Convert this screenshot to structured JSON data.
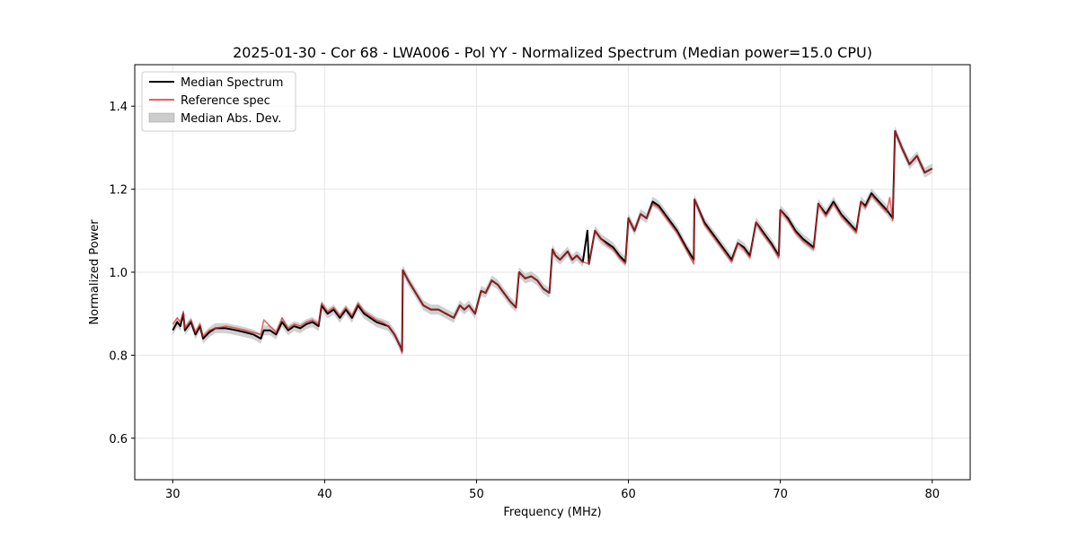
{
  "chart_data": {
    "type": "line",
    "title": "2025-01-30 - Cor 68 - LWA006 - Pol YY - Normalized Spectrum (Median power=15.0 CPU)",
    "xlabel": "Frequency (MHz)",
    "ylabel": "Normalized Power",
    "xlim": [
      27.5,
      82.5
    ],
    "ylim": [
      0.5,
      1.5
    ],
    "xticks": [
      30,
      40,
      50,
      60,
      70,
      80
    ],
    "yticks": [
      0.6,
      0.8,
      1.0,
      1.2,
      1.4
    ],
    "xtick_labels": [
      "30",
      "40",
      "50",
      "60",
      "70",
      "80"
    ],
    "ytick_labels": [
      "0.6",
      "0.8",
      "1.0",
      "1.2",
      "1.4"
    ],
    "grid": true,
    "legend_position": "top-left",
    "legend": [
      "Median Spectrum",
      "Reference spec",
      "Median Abs. Dev."
    ],
    "colors": {
      "median": "#000000",
      "reference": "#e0282b",
      "mad": "#b0b0b0"
    },
    "series": [
      {
        "name": "Median Spectrum",
        "x": [
          30.0,
          30.3,
          30.5,
          30.7,
          30.8,
          31.2,
          31.5,
          31.8,
          32.0,
          32.4,
          32.8,
          33.5,
          34.2,
          34.8,
          35.3,
          35.8,
          36.0,
          36.4,
          36.8,
          37.2,
          37.6,
          38.0,
          38.4,
          38.8,
          39.2,
          39.6,
          39.8,
          40.2,
          40.6,
          41.0,
          41.4,
          41.8,
          42.2,
          42.6,
          43.0,
          43.4,
          43.8,
          44.2,
          44.6,
          45.0,
          45.1,
          45.15,
          45.5,
          46.0,
          46.5,
          47.0,
          47.5,
          48.0,
          48.5,
          48.9,
          49.2,
          49.5,
          49.9,
          50.3,
          50.6,
          51.0,
          51.4,
          51.8,
          52.2,
          52.6,
          52.8,
          53.2,
          53.6,
          54.0,
          54.4,
          54.8,
          55.0,
          55.2,
          55.5,
          56.0,
          56.3,
          56.6,
          57.0,
          57.3,
          57.4,
          57.8,
          58.2,
          58.6,
          59.0,
          59.4,
          59.8,
          60.0,
          60.4,
          60.8,
          61.2,
          61.6,
          62.0,
          62.6,
          63.2,
          63.8,
          64.3,
          64.35,
          65.0,
          65.6,
          66.2,
          66.8,
          67.2,
          67.6,
          68.0,
          68.4,
          68.8,
          69.4,
          69.9,
          70.0,
          70.5,
          71.0,
          71.5,
          72.2,
          72.5,
          73.0,
          73.5,
          74.0,
          74.5,
          75.0,
          75.3,
          75.6,
          76.0,
          76.5,
          77.0,
          77.4,
          77.55,
          78.0,
          78.5,
          79.0,
          79.5,
          80.0
        ],
        "values": [
          0.86,
          0.88,
          0.87,
          0.9,
          0.86,
          0.88,
          0.85,
          0.87,
          0.84,
          0.855,
          0.865,
          0.865,
          0.86,
          0.855,
          0.85,
          0.84,
          0.86,
          0.86,
          0.85,
          0.88,
          0.86,
          0.87,
          0.865,
          0.875,
          0.88,
          0.87,
          0.92,
          0.9,
          0.91,
          0.89,
          0.91,
          0.89,
          0.92,
          0.9,
          0.89,
          0.88,
          0.875,
          0.87,
          0.85,
          0.82,
          0.81,
          1.005,
          0.98,
          0.95,
          0.92,
          0.91,
          0.91,
          0.9,
          0.89,
          0.92,
          0.91,
          0.92,
          0.9,
          0.955,
          0.95,
          0.98,
          0.97,
          0.95,
          0.93,
          0.915,
          1.0,
          0.985,
          0.99,
          0.98,
          0.96,
          0.95,
          1.055,
          1.04,
          1.03,
          1.05,
          1.03,
          1.04,
          1.025,
          1.1,
          1.02,
          1.1,
          1.08,
          1.07,
          1.06,
          1.04,
          1.025,
          1.13,
          1.1,
          1.14,
          1.13,
          1.17,
          1.16,
          1.13,
          1.1,
          1.06,
          1.03,
          1.175,
          1.12,
          1.09,
          1.06,
          1.03,
          1.07,
          1.06,
          1.04,
          1.12,
          1.1,
          1.07,
          1.04,
          1.15,
          1.13,
          1.1,
          1.08,
          1.06,
          1.165,
          1.14,
          1.17,
          1.14,
          1.12,
          1.1,
          1.17,
          1.16,
          1.19,
          1.17,
          1.15,
          1.13,
          1.34,
          1.3,
          1.26,
          1.28,
          1.24,
          1.25
        ]
      },
      {
        "name": "Reference spec",
        "x": [
          30.0,
          30.3,
          30.5,
          30.7,
          30.8,
          31.2,
          31.5,
          31.8,
          32.0,
          32.4,
          32.8,
          33.5,
          34.2,
          34.8,
          35.3,
          35.8,
          36.0,
          36.4,
          36.8,
          37.2,
          37.6,
          38.0,
          38.4,
          38.8,
          39.2,
          39.6,
          39.8,
          40.2,
          40.6,
          41.0,
          41.4,
          41.8,
          42.2,
          42.6,
          43.0,
          43.4,
          43.8,
          44.2,
          44.6,
          45.0,
          45.1,
          45.15,
          45.5,
          46.0,
          46.5,
          47.0,
          47.5,
          48.0,
          48.5,
          48.9,
          49.2,
          49.5,
          49.9,
          50.3,
          50.6,
          51.0,
          51.4,
          51.8,
          52.2,
          52.6,
          52.8,
          53.2,
          53.6,
          54.0,
          54.4,
          54.8,
          55.0,
          55.2,
          55.5,
          56.0,
          56.3,
          56.6,
          57.0,
          57.4,
          57.8,
          58.2,
          58.6,
          59.0,
          59.4,
          59.8,
          60.0,
          60.4,
          60.8,
          61.2,
          61.6,
          62.0,
          62.6,
          63.2,
          63.8,
          64.3,
          64.35,
          65.0,
          65.6,
          66.2,
          66.8,
          67.2,
          67.6,
          68.0,
          68.4,
          68.8,
          69.4,
          69.9,
          70.0,
          70.5,
          71.0,
          71.5,
          72.2,
          72.5,
          73.0,
          73.5,
          74.0,
          74.5,
          75.0,
          75.3,
          75.6,
          76.0,
          76.5,
          77.0,
          77.2,
          77.4,
          77.55,
          78.0,
          78.5,
          79.0,
          79.5,
          80.0
        ],
        "values": [
          0.875,
          0.89,
          0.88,
          0.905,
          0.865,
          0.885,
          0.855,
          0.875,
          0.845,
          0.86,
          0.865,
          0.87,
          0.865,
          0.86,
          0.855,
          0.85,
          0.885,
          0.87,
          0.855,
          0.89,
          0.865,
          0.875,
          0.87,
          0.88,
          0.885,
          0.875,
          0.925,
          0.905,
          0.915,
          0.895,
          0.915,
          0.895,
          0.925,
          0.905,
          0.895,
          0.885,
          0.88,
          0.87,
          0.85,
          0.82,
          0.805,
          1.005,
          0.98,
          0.95,
          0.92,
          0.91,
          0.91,
          0.9,
          0.89,
          0.92,
          0.91,
          0.92,
          0.9,
          0.955,
          0.95,
          0.98,
          0.97,
          0.95,
          0.93,
          0.915,
          1.0,
          0.985,
          0.99,
          0.98,
          0.96,
          0.95,
          1.055,
          1.04,
          1.03,
          1.05,
          1.03,
          1.04,
          1.025,
          1.02,
          1.1,
          1.08,
          1.065,
          1.055,
          1.035,
          1.02,
          1.13,
          1.1,
          1.14,
          1.13,
          1.165,
          1.155,
          1.125,
          1.095,
          1.055,
          1.02,
          1.175,
          1.115,
          1.085,
          1.055,
          1.025,
          1.07,
          1.055,
          1.035,
          1.12,
          1.095,
          1.065,
          1.035,
          1.15,
          1.125,
          1.095,
          1.075,
          1.055,
          1.165,
          1.135,
          1.165,
          1.135,
          1.115,
          1.095,
          1.17,
          1.155,
          1.185,
          1.165,
          1.145,
          1.18,
          1.125,
          1.34,
          1.3,
          1.26,
          1.28,
          1.24,
          1.25
        ]
      }
    ],
    "mad_band": {
      "name": "Median Abs. Dev.",
      "half_width": 0.012
    }
  }
}
